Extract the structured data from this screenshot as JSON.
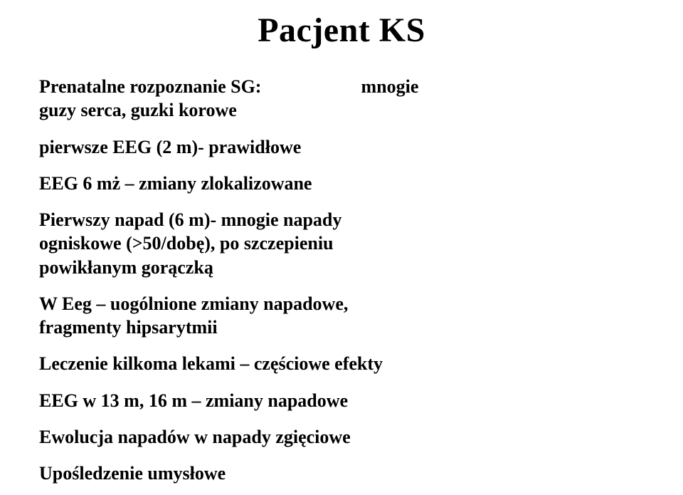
{
  "title": "Pacjent KS",
  "prenatal_left_l1": "Prenatalne rozpoznanie SG:",
  "prenatal_left_l2": "guzy serca, guzki korowe",
  "prenatal_right": "mnogie",
  "line_eeg_first": "pierwsze EEG (2 m)- prawidłowe",
  "line_eeg6": "EEG 6 mż – zmiany zlokalizowane",
  "line_first_seizure_l1": "Pierwszy napad (6 m)- mnogie napady",
  "line_first_seizure_l2": "ogniskowe (>50/dobę), po szczepieniu",
  "line_first_seizure_l3": "powikłanym gorączką",
  "line_weeg_l1": "W Eeg – uogólnione zmiany napadowe,",
  "line_weeg_l2": "fragmenty hipsarytmii",
  "line_treatment": "Leczenie kilkoma lekami – częściowe efekty",
  "line_eeg1316": "EEG w 13 m, 16 m – zmiany napadowe",
  "line_evolution": "Ewolucja napadów w napady zgięciowe",
  "line_retardation": "Upośledzenie umysłowe"
}
